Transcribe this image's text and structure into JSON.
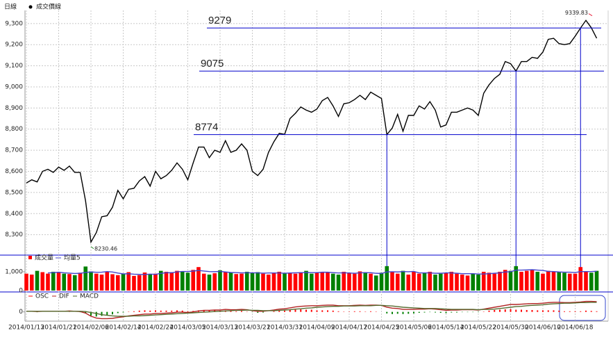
{
  "chart_data": [
    {
      "type": "line",
      "title": "日線",
      "grid": true,
      "categories": [
        "2014/01/13",
        null,
        null,
        null,
        null,
        null,
        "2014/01/21",
        null,
        null,
        null,
        null,
        null,
        "2014/02/06",
        null,
        null,
        null,
        null,
        null,
        "2014/02/14",
        null,
        null,
        null,
        null,
        null,
        "2014/02/24",
        null,
        null,
        null,
        null,
        null,
        "2014/03/05",
        null,
        null,
        null,
        null,
        null,
        "2014/03/13",
        null,
        null,
        null,
        null,
        null,
        "2014/03/21",
        null,
        null,
        null,
        null,
        null,
        "2014/03/31",
        null,
        null,
        null,
        null,
        null,
        "2014/04/09",
        null,
        null,
        null,
        null,
        null,
        "2014/04/17",
        null,
        null,
        null,
        null,
        null,
        "2014/04/25",
        null,
        null,
        null,
        null,
        null,
        "2014/05/06",
        null,
        null,
        null,
        null,
        null,
        "2014/05/14",
        null,
        null,
        null,
        null,
        null,
        "2014/05/22",
        null,
        null,
        null,
        null,
        null,
        "2014/05/30",
        null,
        null,
        null,
        null,
        null,
        "2014/06/10",
        null,
        null,
        null,
        null,
        null,
        "2014/06/18",
        null,
        null,
        null,
        null
      ],
      "series": [
        {
          "name": "成交價線",
          "color": "#000000",
          "values": [
            8545,
            8560,
            8550,
            8600,
            8610,
            8595,
            8620,
            8605,
            8625,
            8595,
            8595,
            8460,
            8265,
            8310,
            8385,
            8390,
            8430,
            8510,
            8470,
            8515,
            8520,
            8555,
            8575,
            8530,
            8600,
            8565,
            8580,
            8605,
            8640,
            8610,
            8560,
            8640,
            8715,
            8715,
            8665,
            8700,
            8690,
            8745,
            8690,
            8700,
            8730,
            8700,
            8600,
            8580,
            8610,
            8690,
            8740,
            8780,
            8775,
            8850,
            8875,
            8905,
            8890,
            8880,
            8895,
            8935,
            8950,
            8910,
            8860,
            8920,
            8925,
            8940,
            8960,
            8940,
            8975,
            8960,
            8945,
            8774,
            8805,
            8870,
            8790,
            8865,
            8865,
            8910,
            8895,
            8930,
            8890,
            8810,
            8820,
            8880,
            8880,
            8890,
            8900,
            8890,
            8865,
            8970,
            9010,
            9040,
            9060,
            9120,
            9110,
            9075,
            9120,
            9120,
            9140,
            9135,
            9165,
            9225,
            9230,
            9205,
            9200,
            9205,
            9240,
            9279,
            9315,
            9280,
            9230
          ]
        }
      ],
      "ylim": [
        8210,
        9362
      ],
      "yticks": [
        {
          "value": 8300,
          "label": "8,300"
        },
        {
          "value": 8400,
          "label": "8,400"
        },
        {
          "value": 8500,
          "label": "8,500"
        },
        {
          "value": 8600,
          "label": "8,600"
        },
        {
          "value": 8700,
          "label": "8,700"
        },
        {
          "value": 8800,
          "label": "8,800"
        },
        {
          "value": 8900,
          "label": "8,900"
        },
        {
          "value": 9000,
          "label": "9,000"
        },
        {
          "value": 9100,
          "label": "9,100"
        },
        {
          "value": 9200,
          "label": "9,200"
        },
        {
          "value": 9300,
          "label": "9,300"
        }
      ],
      "annotations": [
        {
          "value": 9279,
          "index": 103
        },
        {
          "value": 9075,
          "index": 91
        },
        {
          "value": 8774,
          "index": 67
        }
      ],
      "annotation_color": "#0000cc",
      "high": {
        "value": 9339.83,
        "index": 104,
        "color": "#e8203a"
      },
      "low": {
        "value": 8230.46,
        "index": 12,
        "color": "#2a8a2a"
      }
    },
    {
      "type": "bar",
      "series": [
        {
          "name": "成交量",
          "up_color": "#ff0000",
          "down_color": "#008000",
          "values": [
            900,
            850,
            1050,
            980,
            900,
            1000,
            950,
            900,
            880,
            820,
            950,
            1280,
            1020,
            900,
            850,
            1000,
            870,
            820,
            900,
            980,
            780,
            820,
            960,
            850,
            900,
            1050,
            1000,
            980,
            1050,
            1000,
            950,
            1100,
            1250,
            900,
            850,
            920,
            1080,
            1000,
            950,
            880,
            900,
            1000,
            950,
            980,
            900,
            850,
            950,
            1000,
            920,
            950,
            900,
            980,
            1050,
            900,
            950,
            1000,
            980,
            900,
            850,
            1000,
            950,
            900,
            1020,
            980,
            900,
            800,
            950,
            1300,
            1000,
            900,
            1050,
            850,
            1000,
            900,
            950,
            1000,
            850,
            900,
            950,
            1000,
            900,
            850,
            800,
            900,
            850,
            1000,
            950,
            900,
            1000,
            1100,
            1050,
            1300,
            1000,
            1050,
            1100,
            1000,
            900,
            1050,
            1000,
            1000,
            950,
            900,
            900,
            1250,
            1000,
            950,
            1050
          ]
        },
        {
          "name": "均量5",
          "color": "#4444cc",
          "values": [
            null,
            null,
            null,
            null,
            936,
            956,
            976,
            946,
            926,
            910,
            920,
            966,
            990,
            974,
            980,
            1010,
            988,
            932,
            888,
            894,
            870,
            860,
            852,
            878,
            862,
            916,
            952,
            948,
            996,
            1016,
            1016,
            1036,
            1070,
            1040,
            1010,
            1004,
            1020,
            990,
            962,
            956,
            942,
            946,
            946,
            942,
            926,
            936,
            936,
            936,
            924,
            934,
            944,
            950,
            960,
            956,
            956,
            976,
            976,
            956,
            936,
            946,
            936,
            920,
            944,
            950,
            950,
            920,
            910,
            990,
            1000,
            990,
            1010,
            1000,
            1020,
            940,
            940,
            940,
            920,
            920,
            940,
            940,
            920,
            900,
            900,
            900,
            880,
            880,
            900,
            920,
            940,
            990,
            1000,
            1090,
            1090,
            1100,
            1110,
            1090,
            1070,
            1020,
            1010,
            990,
            980,
            980,
            960,
            1010,
            1010,
            1010,
            1030
          ]
        }
      ],
      "ylim": [
        0,
        1850
      ],
      "yticks": [
        0,
        {
          "value": 1000,
          "label": "1,000"
        }
      ]
    },
    {
      "type": "macd",
      "series": [
        {
          "name": "OSC",
          "up_color": "#ff0000",
          "down_color": "#008000",
          "values": [
            0,
            0,
            -1,
            0,
            0,
            0,
            0,
            0,
            1,
            0,
            -1,
            -5,
            -12,
            -15,
            -13,
            -11,
            -8,
            -4,
            -2,
            1,
            2,
            4,
            5,
            4,
            5,
            4,
            4,
            4,
            5,
            4,
            2,
            3,
            5,
            6,
            5,
            5,
            4,
            5,
            3,
            2,
            3,
            1,
            -1,
            -3,
            -2,
            0,
            2,
            4,
            4,
            6,
            7,
            8,
            7,
            7,
            5,
            5,
            5,
            4,
            2,
            1,
            1,
            2,
            2,
            1,
            2,
            1,
            0,
            -5,
            -7,
            -6,
            -7,
            -6,
            -5,
            -3,
            -2,
            -1,
            -2,
            -3,
            -4,
            -2,
            -2,
            -1,
            -1,
            -1,
            -1,
            1,
            4,
            6,
            7,
            8,
            9,
            7,
            7,
            6,
            6,
            5,
            5,
            5,
            5,
            4,
            2,
            2,
            2,
            2,
            4,
            3,
            2
          ]
        },
        {
          "name": "DIF",
          "color": "#b22222",
          "values": [
            2,
            2,
            1,
            2,
            2,
            2,
            2,
            2,
            3,
            2,
            1,
            -4,
            -14,
            -20,
            -22,
            -22,
            -21,
            -18,
            -16,
            -13,
            -11,
            -9,
            -7,
            -7,
            -5,
            -5,
            -4,
            -3,
            -1,
            -1,
            -2,
            0,
            3,
            5,
            5,
            6,
            6,
            8,
            7,
            7,
            8,
            7,
            4,
            2,
            2,
            4,
            6,
            9,
            10,
            13,
            16,
            18,
            19,
            20,
            20,
            21,
            22,
            22,
            20,
            20,
            20,
            21,
            22,
            21,
            22,
            22,
            21,
            15,
            12,
            11,
            8,
            8,
            8,
            9,
            9,
            10,
            9,
            7,
            5,
            6,
            6,
            7,
            7,
            7,
            6,
            9,
            12,
            15,
            18,
            21,
            24,
            24,
            25,
            26,
            27,
            27,
            28,
            30,
            31,
            31,
            30,
            30,
            31,
            32,
            34,
            34,
            33
          ]
        },
        {
          "name": "MACD",
          "color": "#556b2f",
          "values": [
            2,
            2,
            2,
            2,
            2,
            2,
            2,
            2,
            2,
            2,
            2,
            1,
            -2,
            -5,
            -9,
            -11,
            -13,
            -14,
            -14,
            -14,
            -13,
            -13,
            -12,
            -11,
            -10,
            -9,
            -8,
            -7,
            -6,
            -5,
            -4,
            -3,
            -2,
            -1,
            0,
            1,
            2,
            3,
            4,
            5,
            5,
            6,
            5,
            5,
            4,
            4,
            4,
            5,
            6,
            7,
            9,
            10,
            12,
            13,
            15,
            16,
            17,
            18,
            18,
            19,
            19,
            19,
            20,
            20,
            20,
            21,
            21,
            20,
            19,
            17,
            15,
            14,
            13,
            12,
            11,
            11,
            11,
            10,
            9,
            8,
            8,
            8,
            8,
            8,
            7,
            8,
            8,
            9,
            11,
            13,
            15,
            17,
            18,
            20,
            21,
            22,
            23,
            25,
            26,
            27,
            28,
            28,
            29,
            30,
            30,
            31,
            31
          ]
        }
      ],
      "ylim": [
        -30,
        60
      ],
      "yticks": [
        0
      ]
    }
  ]
}
